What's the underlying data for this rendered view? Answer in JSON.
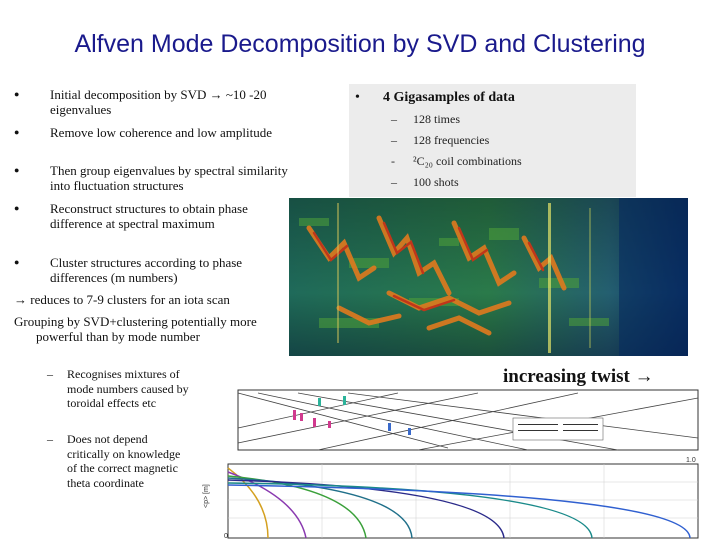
{
  "slide": {
    "title": "Alfven Mode Decomposition by SVD and Clustering",
    "left_bullets": [
      {
        "text": "Initial decomposition by SVD → ~10 -20 eigenvalues"
      },
      {
        "text": "Remove low coherence and low amplitude"
      },
      {
        "text": "Then group eigenvalues by spectral similarity into fluctuation structures"
      },
      {
        "text": "Reconstruct structures to obtain phase difference at spectral maximum"
      },
      {
        "text": "Cluster structures according to phase differences (m numbers)"
      }
    ],
    "reduces_line": "→ reduces to 7-9 clusters for an iota scan",
    "grouping_line": "Grouping by SVD+clustering potentially more powerful than by mode number",
    "sub_bullets": [
      {
        "text": "Recognises mixtures of mode numbers caused by toroidal effects etc"
      },
      {
        "text": "Does not depend critically on knowledge of the correct magnetic theta coordinate"
      }
    ],
    "right_panel": {
      "main_bullet": "4 Gigasamples of data",
      "items": [
        {
          "dash": "–",
          "text": "128 times"
        },
        {
          "dash": "–",
          "text": "128 frequencies"
        },
        {
          "dash": "-",
          "text": "²C₂₀ coil combinations"
        },
        {
          "dash": "–",
          "text": "100 shots"
        }
      ]
    },
    "twist_label": "increasing twist →",
    "plot_labels": {
      "lower_ylabel": "<p> [m]",
      "x_tick_0": "0",
      "x_tick_1": "1.0"
    }
  },
  "colors": {
    "title": "#1a1a8c",
    "panel_bg": "#ececec",
    "spectro_bg": "#0d3a6a"
  }
}
